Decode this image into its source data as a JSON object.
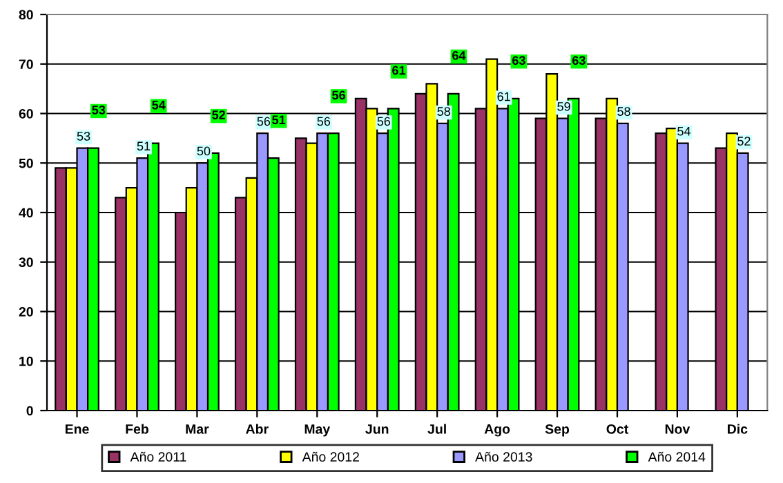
{
  "chart_data": {
    "type": "bar",
    "categories": [
      "Ene",
      "Feb",
      "Mar",
      "Abr",
      "May",
      "Jun",
      "Jul",
      "Ago",
      "Sep",
      "Oct",
      "Nov",
      "Dic"
    ],
    "series": [
      {
        "name": "Año 2011",
        "color": "#993366",
        "values": [
          49,
          43,
          40,
          43,
          55,
          63,
          64,
          61,
          59,
          59,
          56,
          53
        ]
      },
      {
        "name": "Año 2012",
        "color": "#ffff00",
        "values": [
          49,
          45,
          45,
          47,
          54,
          61,
          66,
          71,
          68,
          63,
          57,
          56
        ]
      },
      {
        "name": "Año 2013",
        "color": "#9999ff",
        "values": [
          53,
          51,
          50,
          56,
          56,
          56,
          58,
          61,
          59,
          58,
          54,
          52
        ],
        "value_labels": [
          "53",
          "51",
          "50",
          "56",
          "56",
          "56",
          "58",
          "61",
          "59",
          "58",
          "54",
          "52"
        ]
      },
      {
        "name": "Año 2014",
        "color": "#00ff00",
        "values": [
          53,
          54,
          52,
          51,
          56,
          61,
          64,
          63,
          63,
          null,
          null,
          null
        ],
        "value_labels": [
          "53",
          "54",
          "52",
          "51",
          "56",
          "61",
          "64",
          "63",
          "63",
          null,
          null,
          null
        ]
      }
    ],
    "ylim": [
      0,
      80
    ],
    "yticks": [
      0,
      10,
      20,
      30,
      40,
      50,
      60,
      70,
      80
    ],
    "grid": "y",
    "legend": "bottom"
  }
}
